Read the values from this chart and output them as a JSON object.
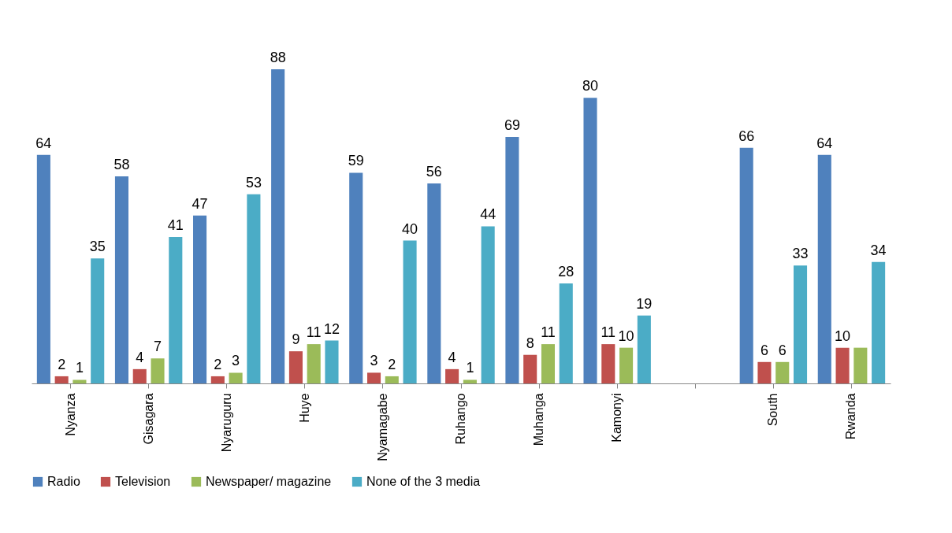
{
  "chart_data": {
    "type": "bar",
    "categories": [
      "Nyanza",
      "Gisagara",
      "Nyaruguru",
      "Huye",
      "Nyamagabe",
      "Ruhango",
      "Muhanga",
      "Kamonyi",
      null,
      "South",
      "Rwanda"
    ],
    "series": [
      {
        "name": "Radio",
        "color": "#4f81bd",
        "values": [
          64,
          58,
          47,
          88,
          59,
          56,
          69,
          80,
          null,
          66,
          64
        ],
        "value_labels": [
          "64",
          "58",
          "47",
          "88",
          "59",
          "56",
          "69",
          "80",
          null,
          "66",
          "64"
        ]
      },
      {
        "name": "Television",
        "color": "#c0504d",
        "values": [
          2,
          4,
          2,
          9,
          3,
          4,
          8,
          11,
          null,
          6,
          10
        ],
        "value_labels": [
          "2",
          "4",
          "2",
          "9",
          "3",
          "4",
          "8",
          "11",
          null,
          "6",
          "10"
        ]
      },
      {
        "name": "Newspaper/ magazine",
        "color": "#9bbb59",
        "values": [
          1,
          7,
          3,
          11,
          2,
          1,
          11,
          10,
          null,
          6,
          10
        ],
        "value_labels": [
          "1",
          "7",
          "3",
          "11",
          "2",
          "1",
          "11",
          "10",
          null,
          "6",
          null
        ]
      },
      {
        "name": "None of the 3 media",
        "color": "#4bacc6",
        "values": [
          35,
          41,
          53,
          12,
          40,
          44,
          28,
          19,
          null,
          33,
          34
        ],
        "value_labels": [
          "35",
          "41",
          "53",
          "12",
          "40",
          "44",
          "28",
          "19",
          null,
          "33",
          "34"
        ]
      }
    ],
    "legend": "bottom",
    "grid": false
  }
}
